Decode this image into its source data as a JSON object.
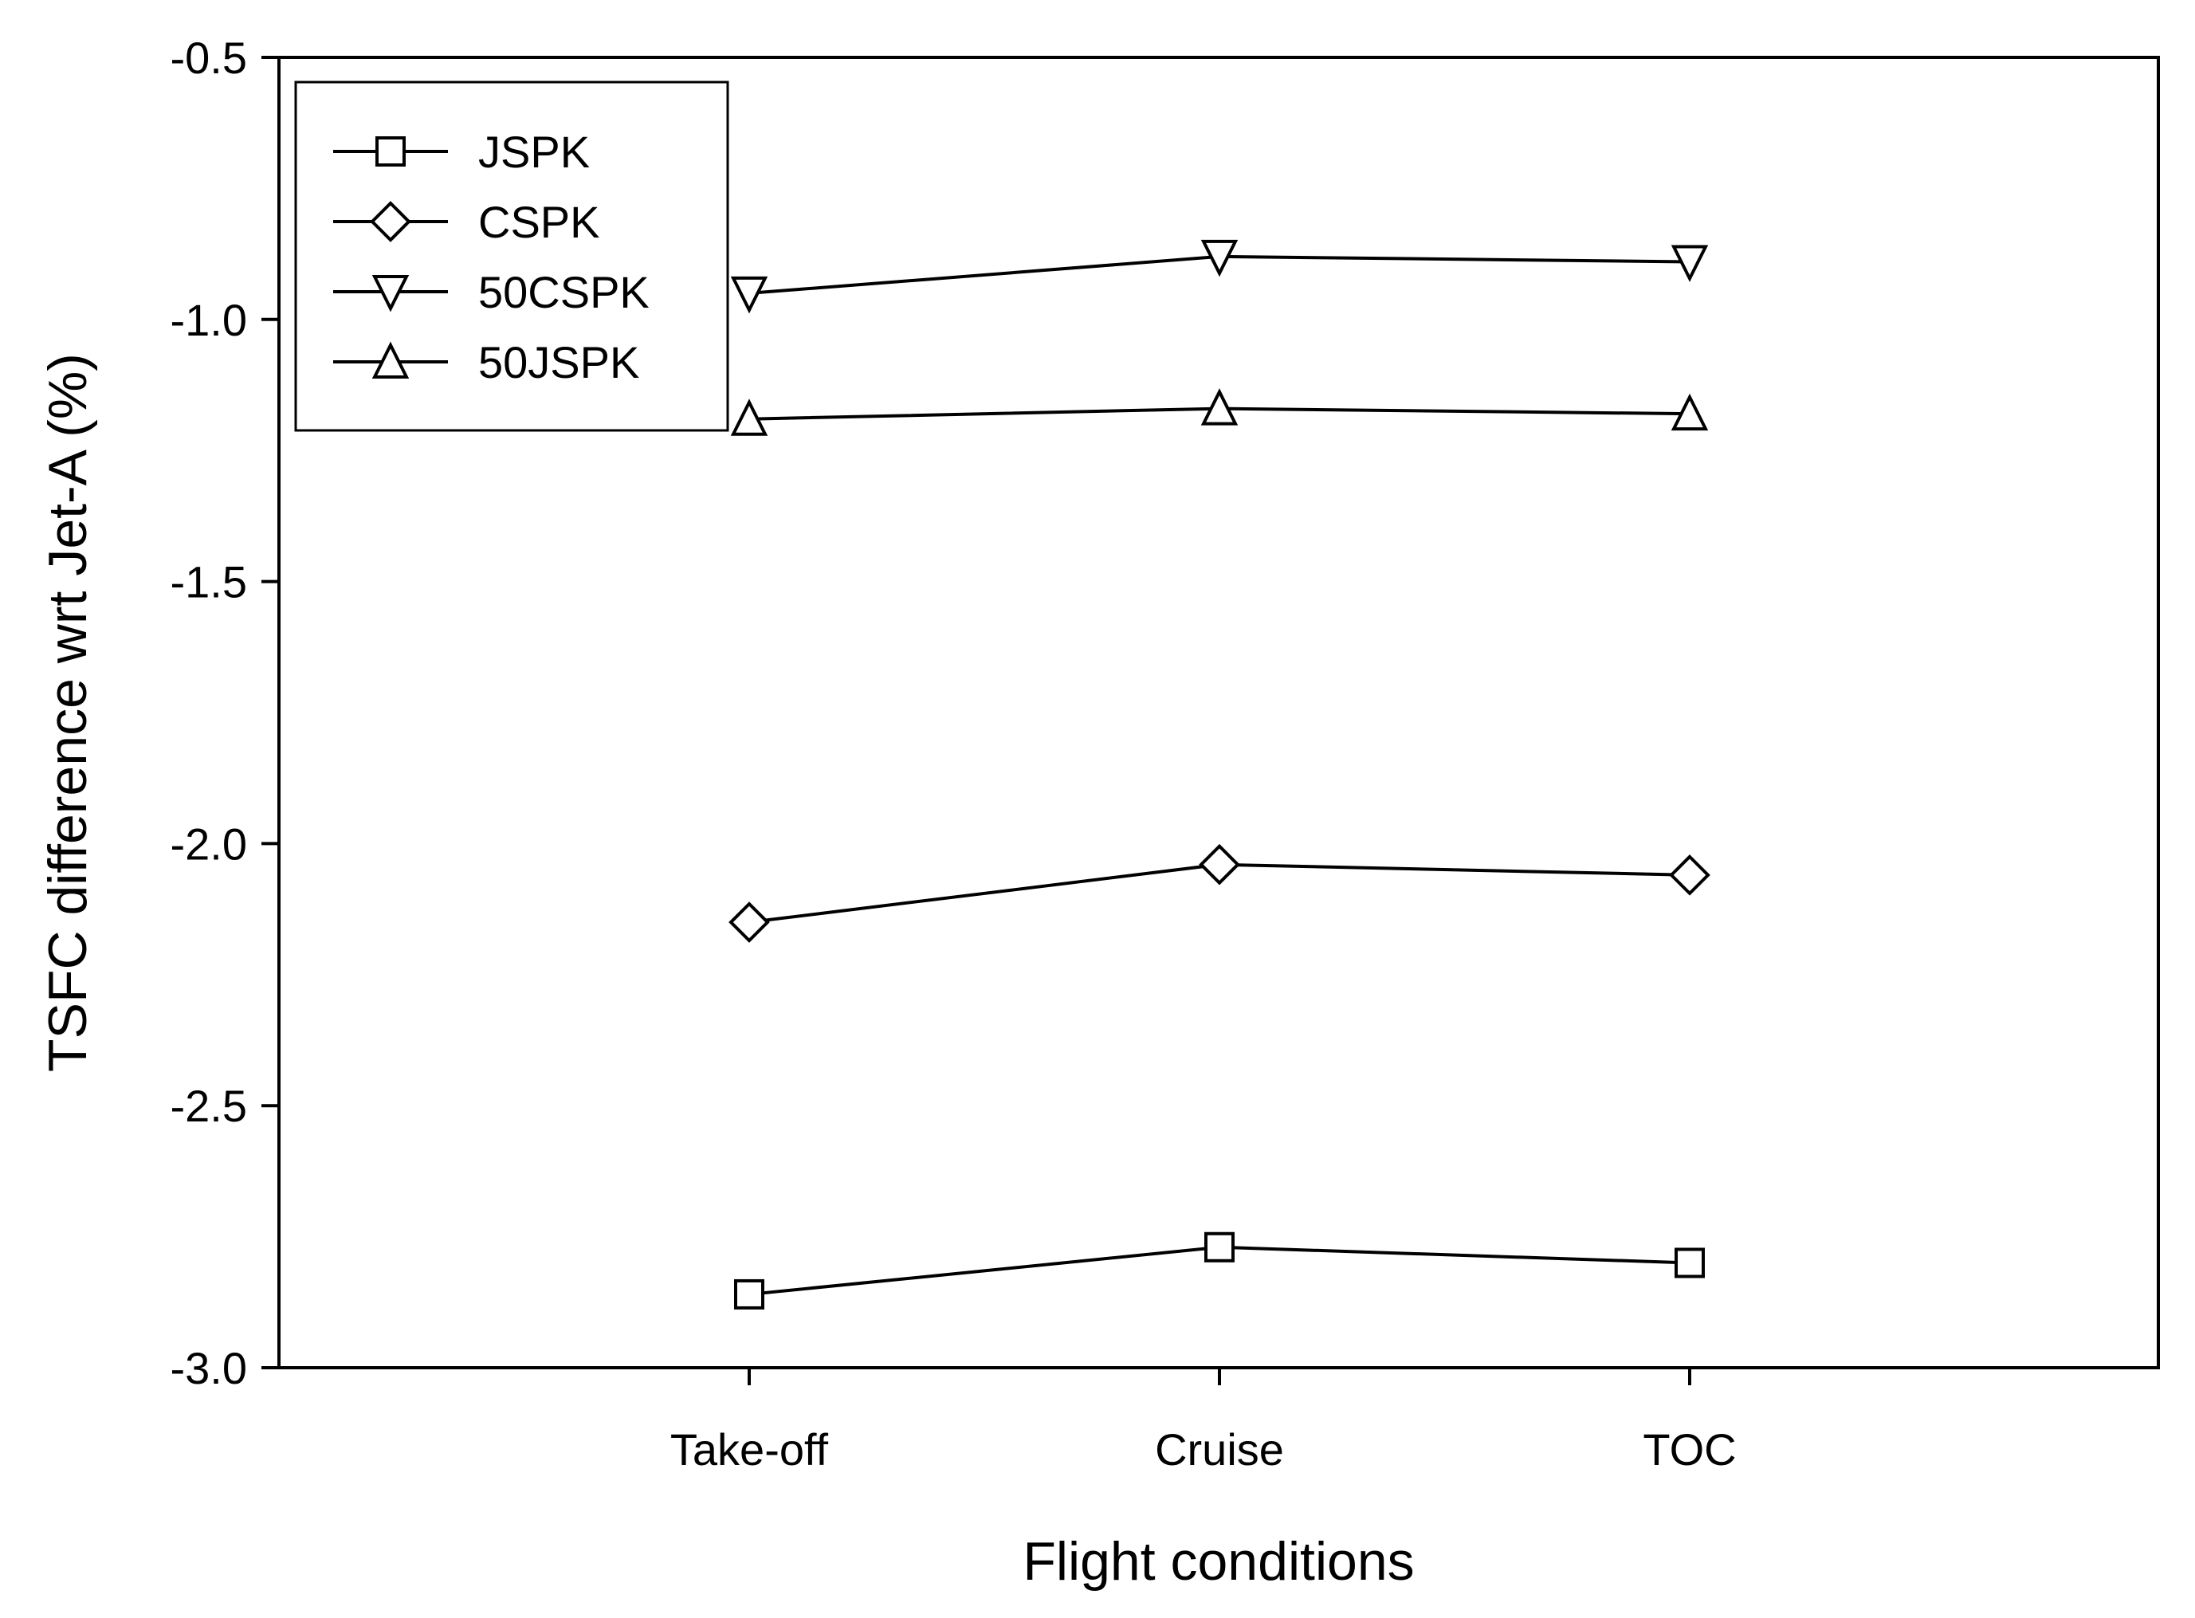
{
  "chart_data": {
    "type": "line",
    "xlabel": "Flight conditions",
    "ylabel": "TSFC difference wrt Jet-A (%)",
    "categories": [
      "Take-off",
      "Cruise",
      "TOC"
    ],
    "ylim": [
      -3.0,
      -0.5
    ],
    "yticks": [
      -3.0,
      -2.5,
      -2.0,
      -1.5,
      -1.0,
      -0.5
    ],
    "ytick_labels": [
      "-3.0",
      "-2.5",
      "-2.0",
      "-1.5",
      "-1.0",
      "-0.5"
    ],
    "grid": false,
    "legend_position": "top-left",
    "series": [
      {
        "name": "JSPK",
        "marker": "square",
        "values": [
          -2.86,
          -2.77,
          -2.8
        ]
      },
      {
        "name": "CSPK",
        "marker": "diamond",
        "values": [
          -2.15,
          -2.04,
          -2.06
        ]
      },
      {
        "name": "50CSPK",
        "marker": "triangle-down",
        "values": [
          -0.95,
          -0.88,
          -0.89
        ]
      },
      {
        "name": "50JSPK",
        "marker": "triangle-up",
        "values": [
          -1.19,
          -1.17,
          -1.18
        ]
      }
    ],
    "line_color": "#000000"
  }
}
